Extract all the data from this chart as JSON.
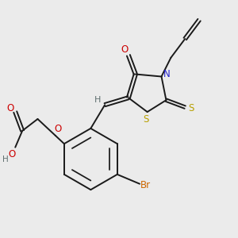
{
  "background_color": "#ebebeb",
  "figsize": [
    3.0,
    3.0
  ],
  "dpi": 100,
  "bond_color": "#1a1a1a",
  "bond_lw": 1.4,
  "colors": {
    "O": "#cc0000",
    "N": "#2222cc",
    "S": "#b8a000",
    "Br": "#cc6600",
    "H": "#607070",
    "C": "#1a1a1a"
  }
}
